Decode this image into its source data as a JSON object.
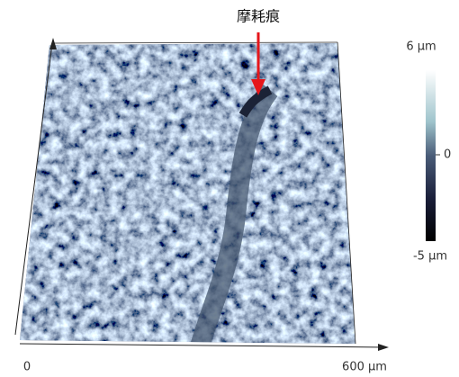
{
  "annotation": "摩耗痕",
  "colorbar": {
    "max_label": "6 μm",
    "mid_label": "0",
    "min_label": "-5 μm"
  },
  "x_axis": {
    "start_label": "0",
    "end_label": "600 μm"
  }
}
